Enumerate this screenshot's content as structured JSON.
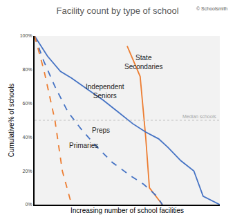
{
  "chart_data": {
    "type": "line",
    "title": "Facility count by type of school",
    "x_label": "Increasing number of school facilities",
    "y_label": "Cumulative% of schools",
    "annotations": [
      "© Schoolsmith"
    ],
    "median": {
      "value": 50,
      "label": "Median schools"
    },
    "xlim": [
      0,
      100
    ],
    "ylim": [
      0,
      100
    ],
    "yticks": [
      {
        "value": 0,
        "label": "0%"
      },
      {
        "value": 20,
        "label": "20%"
      },
      {
        "value": 40,
        "label": "40%"
      },
      {
        "value": 60,
        "label": "60%"
      },
      {
        "value": 80,
        "label": "80%"
      },
      {
        "value": 100,
        "label": "100%"
      }
    ],
    "tick_labels": "y",
    "grid": false,
    "series": [
      {
        "name": "State Secondaries",
        "color": "#ed7d31",
        "line_style": "solid",
        "x": [
          50,
          57,
          60,
          62,
          69
        ],
        "values": [
          94,
          76,
          40,
          10,
          0
        ]
      },
      {
        "name": "Independent Seniors",
        "color": "#4472c4",
        "line_style": "solid",
        "x": [
          0,
          7,
          14,
          20,
          29,
          37,
          45,
          53,
          60,
          67,
          72,
          79,
          86,
          91,
          100
        ],
        "values": [
          100,
          88,
          79,
          75,
          68,
          62,
          55,
          48,
          43,
          39,
          34,
          26,
          20,
          5,
          0
        ]
      },
      {
        "name": "Preps",
        "color": "#4472c4",
        "line_style": "dash",
        "x": [
          0,
          5,
          11,
          18,
          25,
          33,
          42,
          52,
          59,
          66,
          69
        ],
        "values": [
          100,
          85,
          70,
          55,
          45,
          35,
          25,
          17,
          12,
          5,
          0
        ]
      },
      {
        "name": "Primaries",
        "color": "#ed7d31",
        "line_style": "dash",
        "x": [
          0,
          5,
          11,
          15,
          18,
          20
        ],
        "values": [
          100,
          80,
          50,
          20,
          8,
          0
        ]
      }
    ]
  }
}
